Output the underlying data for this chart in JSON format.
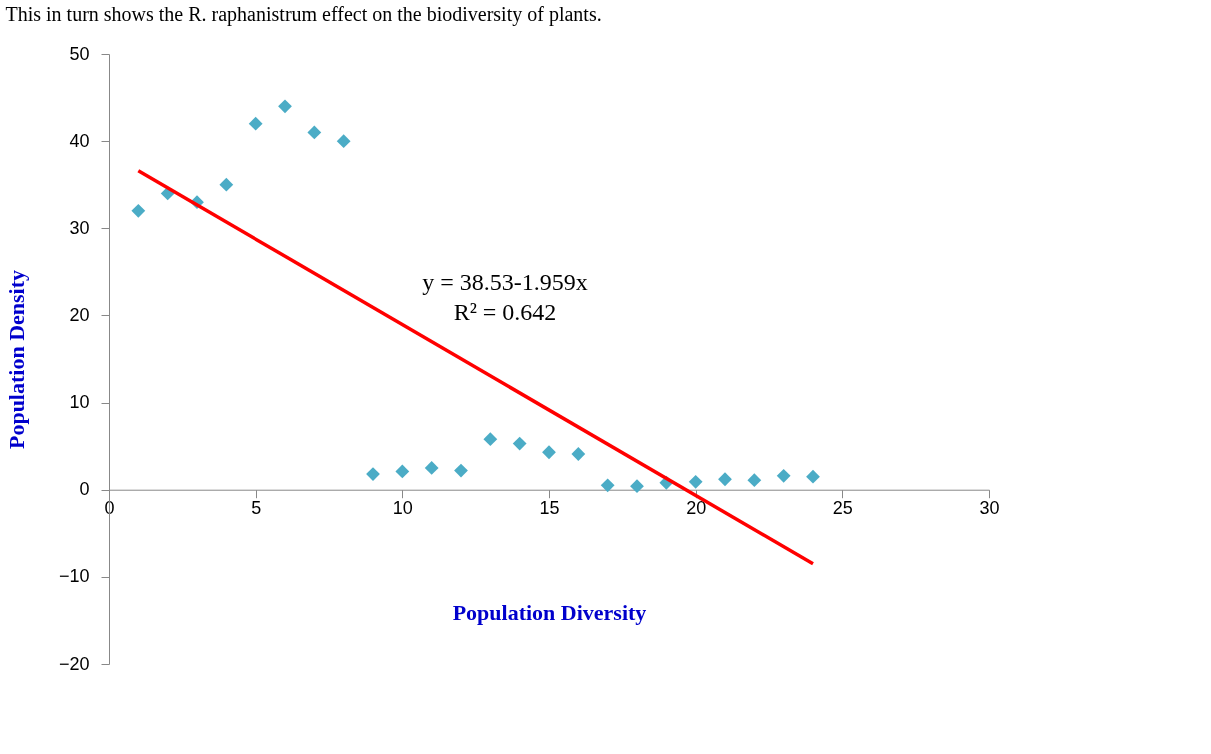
{
  "chart_data": {
    "type": "scatter",
    "title": "This in turn shows the R. raphanistrum effect on the biodiversity of plants.",
    "xlabel": "Population Diversity",
    "ylabel": "Population Density",
    "x": [
      1,
      2,
      3,
      4,
      5,
      6,
      7,
      8,
      9,
      10,
      11,
      12,
      13,
      14,
      15,
      16,
      17,
      18,
      19,
      20,
      21,
      22,
      23,
      24
    ],
    "series": [
      {
        "color": "#4bacc6",
        "marker": "diamond",
        "values": [
          32,
          34,
          33,
          35,
          42,
          44,
          41,
          40,
          1.8,
          2.1,
          2.5,
          2.2,
          5.8,
          5.3,
          4.3,
          4.1,
          0.5,
          0.4,
          0.8,
          0.9,
          1.2,
          1.1,
          1.6,
          1.5
        ]
      },
      {
        "type": "line",
        "color": "#ff0000",
        "x": [
          1,
          24
        ],
        "values": [
          36.6,
          -8.5
        ],
        "line_style": "solid"
      }
    ],
    "annotations": [
      "y = 38.53-1.959x",
      "R² = 0.642"
    ],
    "xlim": [
      0,
      30
    ],
    "xticks": [
      0,
      5,
      10,
      15,
      20,
      25,
      30
    ],
    "ylim": [
      -20,
      50
    ],
    "yticks": [
      -20,
      -10,
      0,
      10,
      20,
      30,
      40,
      50
    ],
    "grid": false
  }
}
